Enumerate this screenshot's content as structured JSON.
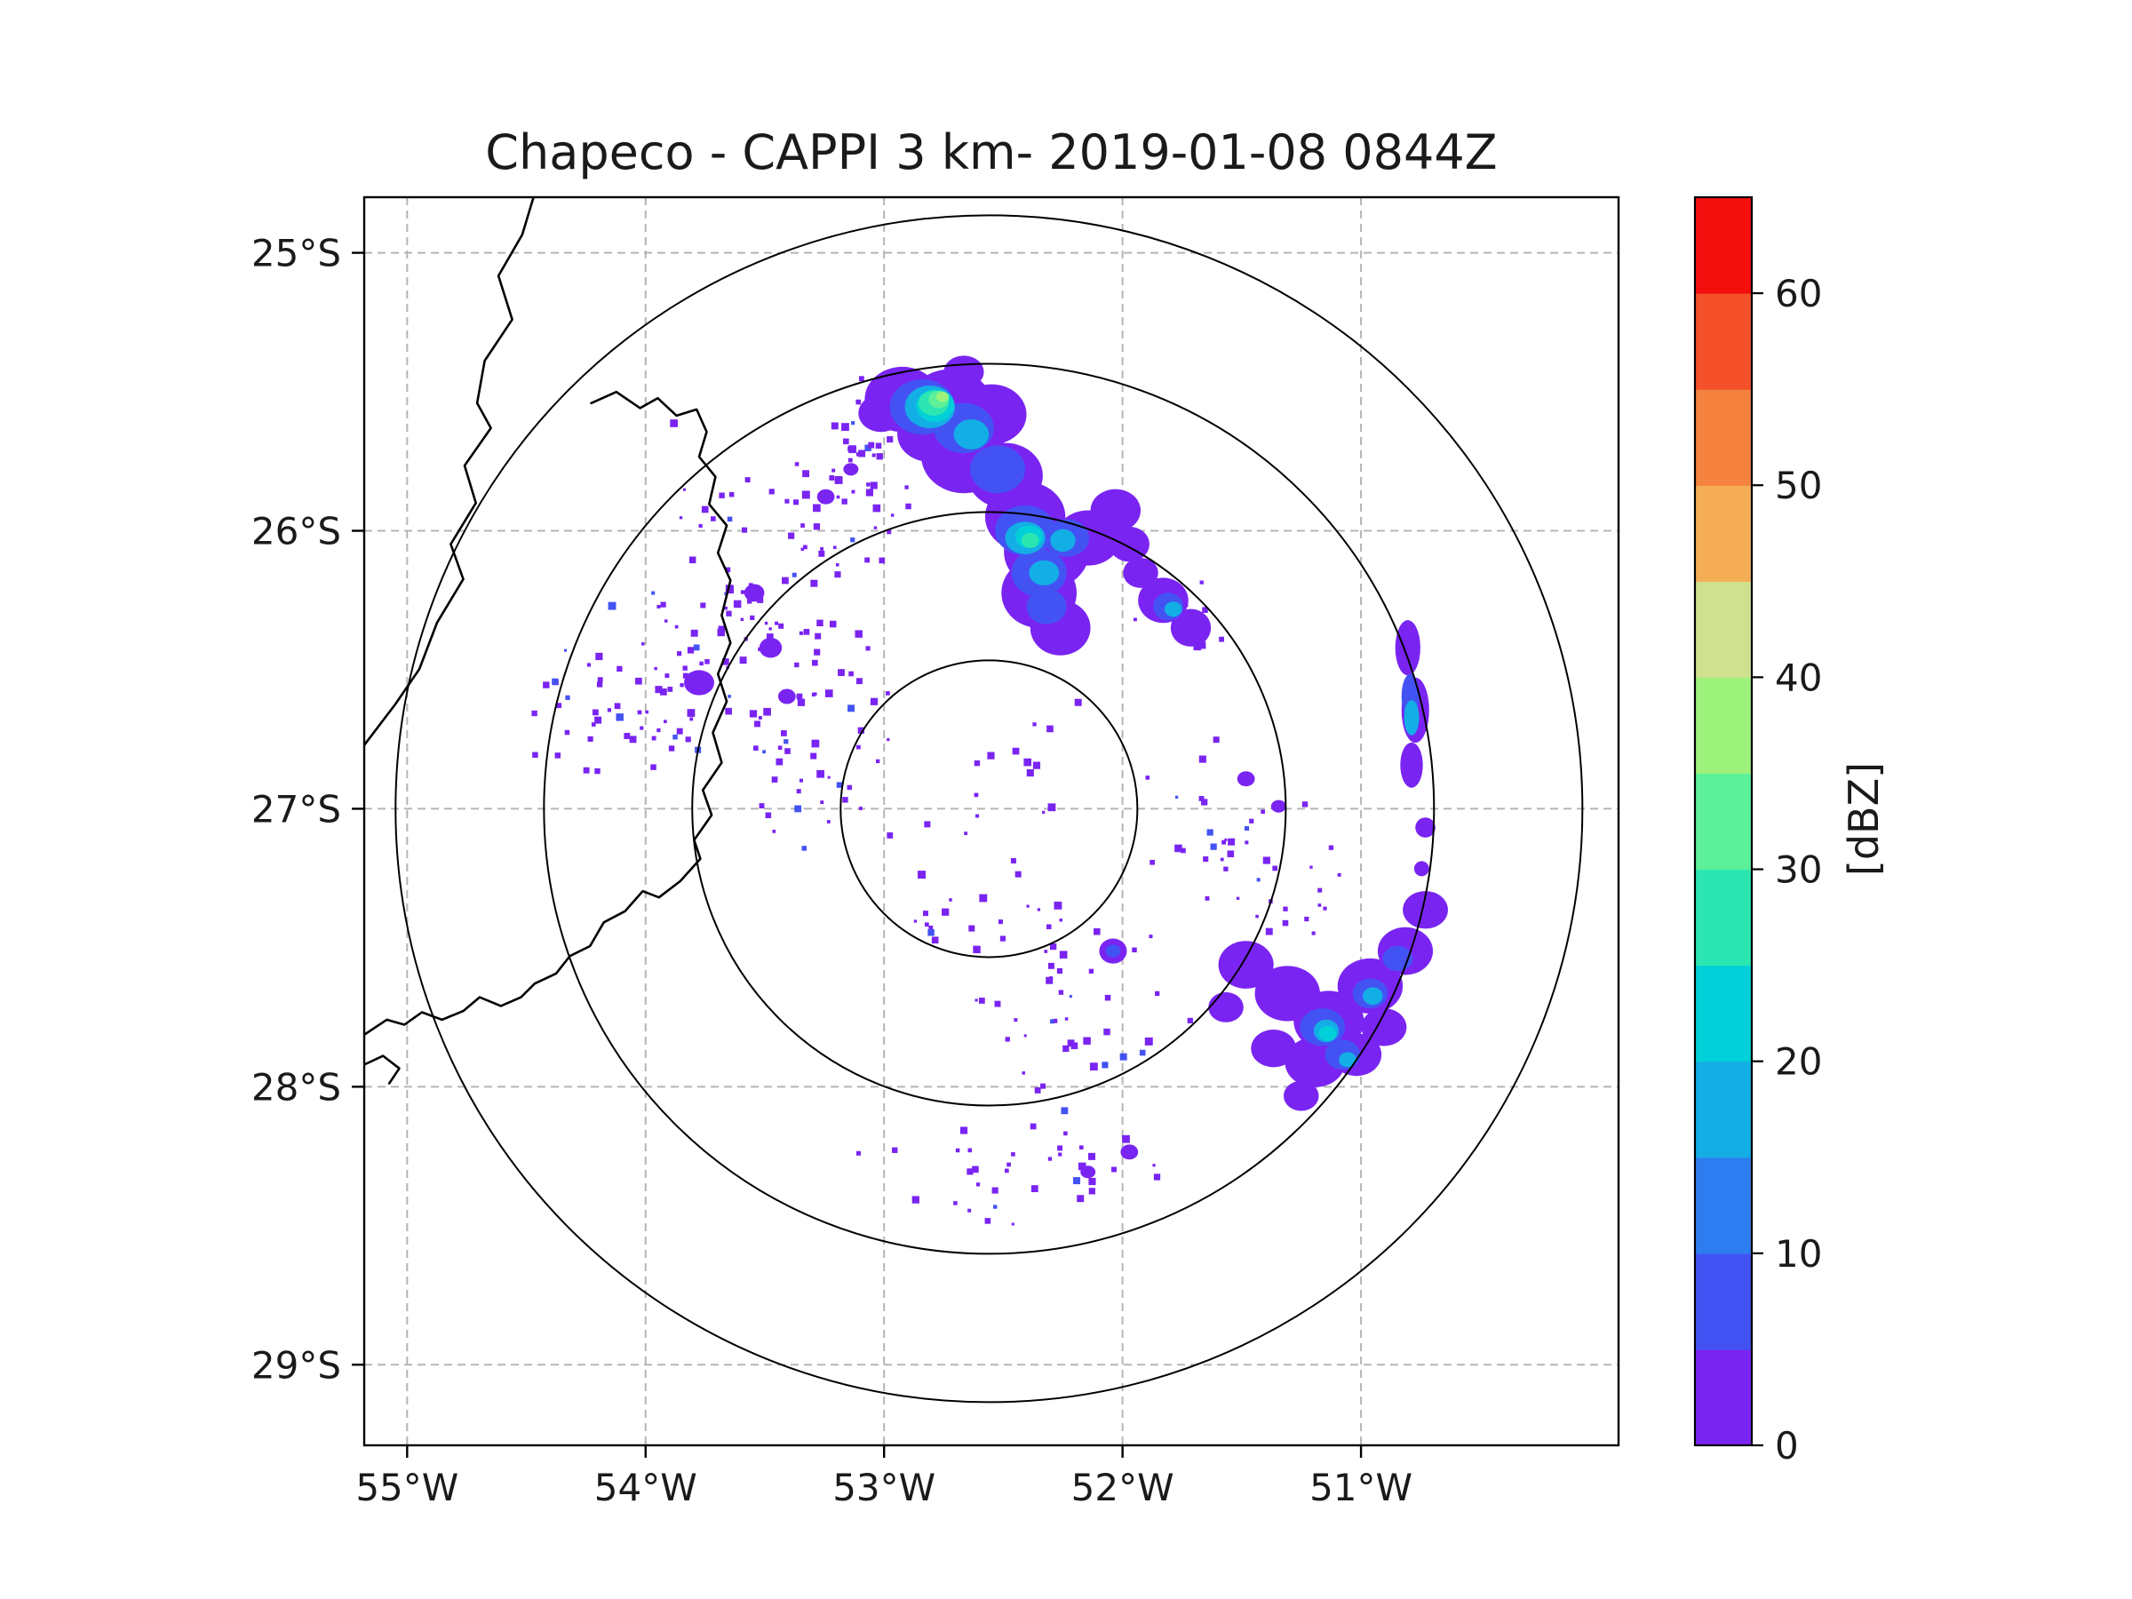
{
  "chart_data": {
    "type": "heatmap",
    "title": "Chapeco - CAPPI 3 km- 2019-01-08 0844Z",
    "xlabel": "",
    "ylabel": "",
    "x_axis": {
      "unit": "degrees West",
      "range_deg_west": [
        55.18,
        49.92
      ],
      "ticks": [
        {
          "value": 55,
          "label": "55°W"
        },
        {
          "value": 54,
          "label": "54°W"
        },
        {
          "value": 53,
          "label": "53°W"
        },
        {
          "value": 52,
          "label": "52°W"
        },
        {
          "value": 51,
          "label": "51°W"
        }
      ]
    },
    "y_axis": {
      "unit": "degrees South",
      "range_deg_south": [
        24.8,
        29.29
      ],
      "ticks": [
        {
          "value": 25,
          "label": "25°S"
        },
        {
          "value": 26,
          "label": "26°S"
        },
        {
          "value": 27,
          "label": "27°S"
        },
        {
          "value": 28,
          "label": "28°S"
        },
        {
          "value": 29,
          "label": "29°S"
        }
      ]
    },
    "grid": {
      "visible": true,
      "style": "dashed",
      "color": "#b5b5b5"
    },
    "colorbar": {
      "label": "[dBZ]",
      "min": 0,
      "max": 65,
      "segment_step": 5,
      "ticks": [
        0,
        10,
        20,
        30,
        40,
        50,
        60
      ],
      "colors": [
        "#7a24f2",
        "#4353f3",
        "#2e7df0",
        "#14aee6",
        "#02d0d8",
        "#2ce6b2",
        "#5cf09b",
        "#9cf27a",
        "#cfe18e",
        "#f4ad55",
        "#f5833f",
        "#f4512b",
        "#f40f0f"
      ]
    },
    "radar": {
      "center_deg": {
        "lon_west": 52.56,
        "lat_south": 27.0
      },
      "ring_count": 4,
      "ring_radii_frac": [
        0.1183,
        0.2366,
        0.3548,
        0.4731
      ]
    },
    "map_borders": [
      {
        "points": [
          [
            0.135,
            0.0
          ],
          [
            0.126,
            0.03
          ],
          [
            0.107,
            0.063
          ],
          [
            0.118,
            0.098
          ],
          [
            0.096,
            0.131
          ],
          [
            0.09,
            0.165
          ],
          [
            0.101,
            0.185
          ],
          [
            0.08,
            0.215
          ],
          [
            0.089,
            0.245
          ],
          [
            0.069,
            0.278
          ],
          [
            0.079,
            0.306
          ],
          [
            0.058,
            0.341
          ],
          [
            0.044,
            0.378
          ],
          [
            0.025,
            0.406
          ],
          [
            0.0,
            0.439
          ]
        ]
      },
      {
        "points": [
          [
            0.181,
            0.165
          ],
          [
            0.201,
            0.156
          ],
          [
            0.22,
            0.169
          ],
          [
            0.234,
            0.161
          ],
          [
            0.249,
            0.175
          ],
          [
            0.265,
            0.17
          ],
          [
            0.273,
            0.188
          ],
          [
            0.267,
            0.208
          ],
          [
            0.28,
            0.224
          ],
          [
            0.275,
            0.246
          ],
          [
            0.289,
            0.263
          ],
          [
            0.282,
            0.285
          ],
          [
            0.292,
            0.307
          ],
          [
            0.285,
            0.335
          ],
          [
            0.292,
            0.357
          ],
          [
            0.282,
            0.382
          ],
          [
            0.289,
            0.404
          ],
          [
            0.278,
            0.429
          ],
          [
            0.285,
            0.453
          ],
          [
            0.27,
            0.475
          ],
          [
            0.277,
            0.495
          ],
          [
            0.263,
            0.515
          ],
          [
            0.268,
            0.53
          ],
          [
            0.252,
            0.548
          ],
          [
            0.235,
            0.561
          ],
          [
            0.222,
            0.556
          ],
          [
            0.208,
            0.572
          ],
          [
            0.191,
            0.581
          ],
          [
            0.18,
            0.6
          ],
          [
            0.164,
            0.608
          ],
          [
            0.153,
            0.622
          ],
          [
            0.136,
            0.63
          ],
          [
            0.125,
            0.641
          ],
          [
            0.109,
            0.648
          ],
          [
            0.092,
            0.641
          ],
          [
            0.079,
            0.652
          ],
          [
            0.062,
            0.659
          ],
          [
            0.046,
            0.653
          ],
          [
            0.032,
            0.663
          ],
          [
            0.018,
            0.659
          ],
          [
            0.0,
            0.671
          ]
        ]
      },
      {
        "points": [
          [
            0.0,
            0.695
          ],
          [
            0.015,
            0.688
          ],
          [
            0.028,
            0.698
          ],
          [
            0.02,
            0.71
          ]
        ]
      }
    ],
    "echo_patches": [
      [
        0.429,
        0.162,
        0.03,
        0.026,
        0
      ],
      [
        0.467,
        0.168,
        0.034,
        0.03,
        0
      ],
      [
        0.5,
        0.174,
        0.028,
        0.024,
        0
      ],
      [
        0.478,
        0.207,
        0.034,
        0.03,
        0
      ],
      [
        0.451,
        0.19,
        0.026,
        0.022,
        0
      ],
      [
        0.511,
        0.223,
        0.03,
        0.026,
        0
      ],
      [
        0.527,
        0.256,
        0.032,
        0.028,
        0
      ],
      [
        0.544,
        0.284,
        0.034,
        0.03,
        0
      ],
      [
        0.538,
        0.317,
        0.03,
        0.028,
        0
      ],
      [
        0.555,
        0.345,
        0.024,
        0.022,
        0
      ],
      [
        0.577,
        0.273,
        0.026,
        0.022,
        0
      ],
      [
        0.599,
        0.251,
        0.02,
        0.017,
        0
      ],
      [
        0.412,
        0.173,
        0.018,
        0.015,
        0
      ],
      [
        0.478,
        0.14,
        0.016,
        0.013,
        0
      ],
      [
        0.61,
        0.278,
        0.016,
        0.014,
        0
      ],
      [
        0.637,
        0.323,
        0.02,
        0.018,
        0
      ],
      [
        0.659,
        0.345,
        0.016,
        0.015,
        0
      ],
      [
        0.619,
        0.301,
        0.014,
        0.012,
        0
      ],
      [
        0.832,
        0.361,
        0.01,
        0.022,
        0
      ],
      [
        0.838,
        0.411,
        0.011,
        0.026,
        0
      ],
      [
        0.835,
        0.455,
        0.009,
        0.018,
        0
      ],
      [
        0.846,
        0.505,
        0.008,
        0.008,
        0
      ],
      [
        0.843,
        0.538,
        0.006,
        0.006,
        0
      ],
      [
        0.703,
        0.615,
        0.022,
        0.019,
        0
      ],
      [
        0.736,
        0.638,
        0.026,
        0.022,
        0
      ],
      [
        0.769,
        0.66,
        0.028,
        0.024,
        0
      ],
      [
        0.802,
        0.632,
        0.026,
        0.022,
        0
      ],
      [
        0.83,
        0.604,
        0.022,
        0.019,
        0
      ],
      [
        0.846,
        0.571,
        0.018,
        0.015,
        0
      ],
      [
        0.758,
        0.693,
        0.024,
        0.02,
        0
      ],
      [
        0.725,
        0.682,
        0.018,
        0.015,
        0
      ],
      [
        0.791,
        0.687,
        0.02,
        0.017,
        0
      ],
      [
        0.813,
        0.665,
        0.018,
        0.015,
        0
      ],
      [
        0.687,
        0.649,
        0.014,
        0.012,
        0
      ],
      [
        0.747,
        0.72,
        0.014,
        0.012,
        0
      ],
      [
        0.597,
        0.604,
        0.011,
        0.01,
        0
      ],
      [
        0.267,
        0.389,
        0.012,
        0.01,
        0
      ],
      [
        0.324,
        0.361,
        0.009,
        0.008,
        0
      ],
      [
        0.311,
        0.317,
        0.008,
        0.007,
        0
      ],
      [
        0.337,
        0.4,
        0.007,
        0.006,
        0
      ],
      [
        0.368,
        0.24,
        0.007,
        0.006,
        0
      ],
      [
        0.388,
        0.218,
        0.006,
        0.005,
        0
      ],
      [
        0.703,
        0.466,
        0.007,
        0.006,
        0
      ],
      [
        0.729,
        0.488,
        0.006,
        0.005,
        0
      ],
      [
        0.61,
        0.765,
        0.007,
        0.006,
        0
      ],
      [
        0.577,
        0.781,
        0.006,
        0.005,
        0
      ],
      [
        0.445,
        0.168,
        0.026,
        0.022,
        1
      ],
      [
        0.478,
        0.185,
        0.024,
        0.02,
        1
      ],
      [
        0.505,
        0.218,
        0.022,
        0.019,
        1
      ],
      [
        0.527,
        0.267,
        0.024,
        0.02,
        1
      ],
      [
        0.538,
        0.301,
        0.022,
        0.019,
        1
      ],
      [
        0.56,
        0.273,
        0.018,
        0.015,
        1
      ],
      [
        0.544,
        0.328,
        0.016,
        0.014,
        1
      ],
      [
        0.641,
        0.328,
        0.012,
        0.011,
        1
      ],
      [
        0.834,
        0.4,
        0.007,
        0.018,
        1
      ],
      [
        0.764,
        0.665,
        0.018,
        0.015,
        1
      ],
      [
        0.802,
        0.638,
        0.014,
        0.012,
        1
      ],
      [
        0.78,
        0.687,
        0.014,
        0.012,
        1
      ],
      [
        0.824,
        0.61,
        0.012,
        0.01,
        1
      ],
      [
        0.597,
        0.604,
        0.006,
        0.005,
        1
      ],
      [
        0.451,
        0.168,
        0.02,
        0.017,
        3
      ],
      [
        0.484,
        0.19,
        0.014,
        0.012,
        3
      ],
      [
        0.527,
        0.273,
        0.016,
        0.013,
        3
      ],
      [
        0.542,
        0.301,
        0.012,
        0.01,
        3
      ],
      [
        0.557,
        0.275,
        0.01,
        0.009,
        3
      ],
      [
        0.645,
        0.33,
        0.007,
        0.006,
        3
      ],
      [
        0.835,
        0.417,
        0.006,
        0.014,
        3
      ],
      [
        0.767,
        0.668,
        0.01,
        0.009,
        3
      ],
      [
        0.804,
        0.64,
        0.008,
        0.007,
        3
      ],
      [
        0.784,
        0.691,
        0.007,
        0.006,
        3
      ],
      [
        0.455,
        0.167,
        0.015,
        0.013,
        4
      ],
      [
        0.53,
        0.272,
        0.011,
        0.009,
        4
      ],
      [
        0.768,
        0.67,
        0.007,
        0.006,
        4
      ],
      [
        0.454,
        0.165,
        0.012,
        0.01,
        5
      ],
      [
        0.531,
        0.275,
        0.007,
        0.006,
        5
      ],
      [
        0.458,
        0.162,
        0.008,
        0.007,
        6
      ],
      [
        0.461,
        0.16,
        0.005,
        0.004,
        7
      ]
    ],
    "speckle_fields": [
      [
        0.31,
        0.33,
        0.1,
        0.11,
        110,
        7
      ],
      [
        0.4,
        0.22,
        0.05,
        0.06,
        40,
        11
      ],
      [
        0.2,
        0.41,
        0.07,
        0.05,
        45,
        21
      ],
      [
        0.55,
        0.62,
        0.09,
        0.06,
        35,
        31
      ],
      [
        0.53,
        0.78,
        0.1,
        0.035,
        35,
        41
      ],
      [
        0.69,
        0.5,
        0.06,
        0.05,
        25,
        51
      ],
      [
        0.52,
        0.45,
        0.06,
        0.05,
        15,
        61
      ],
      [
        0.66,
        0.34,
        0.035,
        0.04,
        14,
        71
      ],
      [
        0.36,
        0.47,
        0.05,
        0.05,
        25,
        81
      ],
      [
        0.47,
        0.56,
        0.05,
        0.04,
        12,
        91
      ],
      [
        0.74,
        0.56,
        0.04,
        0.04,
        16,
        101
      ],
      [
        0.57,
        0.7,
        0.05,
        0.04,
        14,
        111
      ]
    ]
  }
}
